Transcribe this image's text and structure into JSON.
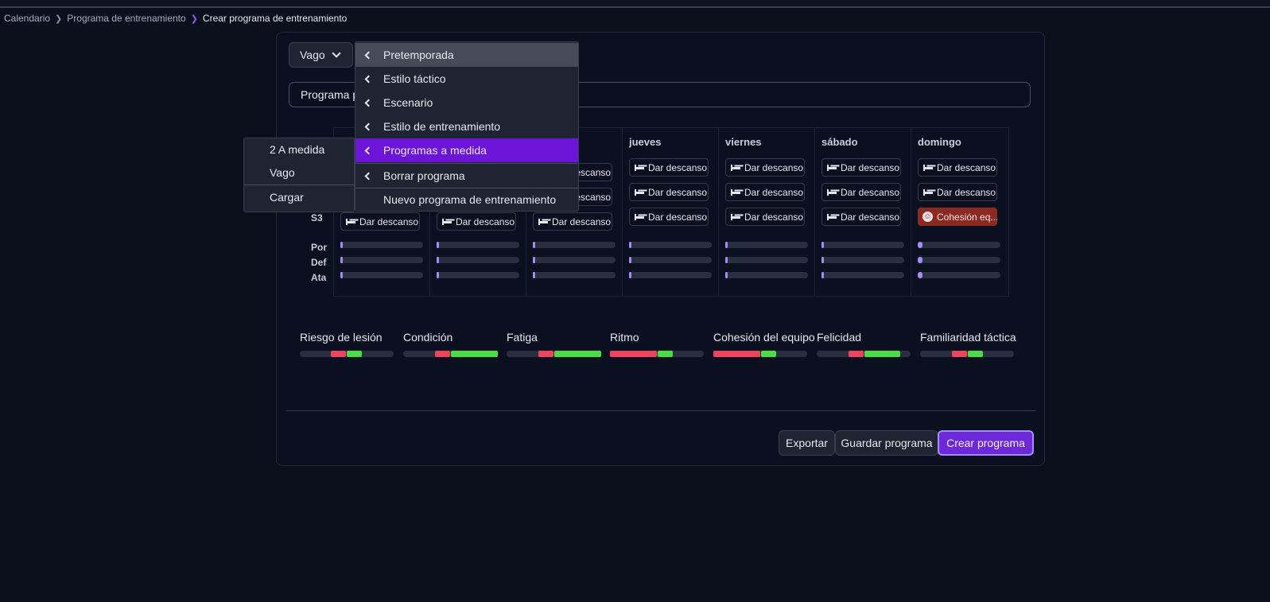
{
  "breadcrumb": {
    "items": [
      "Calendario",
      "Programa de entrenamiento"
    ],
    "current": "Crear programa de entrenamiento"
  },
  "program_select": {
    "value": "Vago"
  },
  "program_name": {
    "value": "Programa p"
  },
  "schedule": {
    "days": [
      "",
      "",
      "",
      "jueves",
      "viernes",
      "sábado",
      "domingo"
    ],
    "row_labels": [
      "S3",
      "Por",
      "Def",
      "Ata"
    ],
    "rest_label": "Dar descanso",
    "cohesion_label": "Cohesión eq..."
  },
  "stats": [
    {
      "label": "Riesgo de lesión",
      "red": 0.16,
      "green": 0.16
    },
    {
      "label": "Condición",
      "red": 0.16,
      "green": 0.5
    },
    {
      "label": "Fatiga",
      "red": 0.16,
      "green": 0.5
    },
    {
      "label": "Ritmo",
      "red": 0.5,
      "green": 0.16
    },
    {
      "label": "Cohesión del equipo",
      "red": 0.5,
      "green": 0.16
    },
    {
      "label": "Felicidad",
      "red": 0.16,
      "green": 0.38
    },
    {
      "label": "Familiaridad táctica",
      "red": 0.16,
      "green": 0.16
    }
  ],
  "actions": {
    "export": "Exportar",
    "save": "Guardar programa",
    "create": "Crear programa"
  },
  "main_menu": {
    "items": [
      {
        "label": "Pretemporada",
        "submenu": true
      },
      {
        "label": "Estilo táctico",
        "submenu": true
      },
      {
        "label": "Escenario",
        "submenu": true
      },
      {
        "label": "Estilo de entrenamiento",
        "submenu": true
      },
      {
        "label": "Programas a medida",
        "submenu": true
      },
      {
        "label": "Borrar programa",
        "submenu": true
      },
      {
        "label": "Nuevo programa de entrenamiento",
        "submenu": false
      }
    ]
  },
  "sub_menu": {
    "items": [
      "2 A medida",
      "Vago"
    ],
    "load": "Cargar"
  },
  "colors": {
    "accent": "#6d28d9",
    "menu_active": "#6d14d9",
    "bar_red": "#f0435c",
    "bar_green": "#4ade45",
    "cohesion_badge": "#8a2a23"
  }
}
